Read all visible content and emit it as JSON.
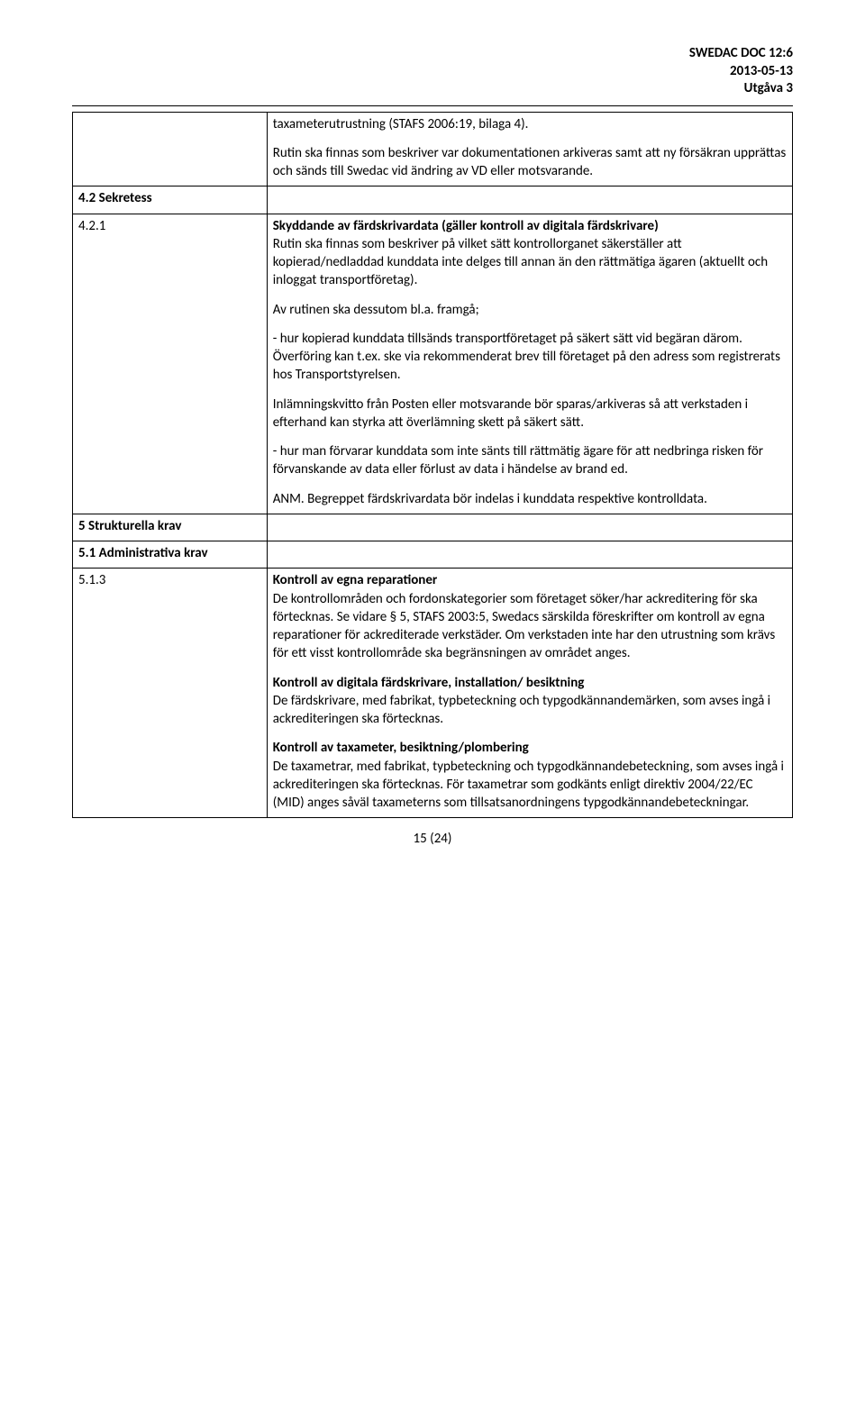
{
  "header": {
    "doc_ref": "SWEDAC DOC 12:6",
    "date": "2013-05-13",
    "edition": "Utgåva 3"
  },
  "rows": {
    "r1": {
      "left": "",
      "p1": "taxameterutrustning (STAFS 2006:19, bilaga 4).",
      "p2": "Rutin ska finnas som beskriver var dokumentationen arkiveras samt att ny försäkran upprättas och sänds till Swedac vid ändring av VD eller motsvarande."
    },
    "r2": {
      "left": "4.2 Sekretess"
    },
    "r3": {
      "left": "4.2.1",
      "heading": "Skyddande av färdskrivardata (gäller kontroll av digitala färdskrivare)",
      "p1": "Rutin ska finnas som beskriver på vilket sätt kontrollorganet säkerställer att kopierad/nedladdad kunddata inte delges till annan än den rättmätiga ägaren (aktuellt och inloggat transportföretag).",
      "p2": "Av rutinen ska dessutom bl.a. framgå;",
      "p3": "- hur kopierad kunddata tillsänds transportföretaget på säkert sätt vid begäran därom. Överföring kan t.ex. ske via rekommenderat brev till företaget på den adress som registrerats hos Transportstyrelsen.",
      "p4": "Inlämningskvitto från Posten eller motsvarande bör sparas/arkiveras så att verkstaden i efterhand kan styrka att överlämning skett på säkert sätt.",
      "p5": "- hur man förvarar kunddata som inte sänts till rättmätig ägare för att nedbringa risken för förvanskande av data eller förlust av data i händelse av brand ed.",
      "p6": "ANM. Begreppet färdskrivardata bör indelas i kunddata respektive kontrolldata."
    },
    "r4": {
      "left": "5 Strukturella krav"
    },
    "r5": {
      "left": "5.1 Administrativa krav"
    },
    "r6": {
      "left": "5.1.3",
      "h1": "Kontroll av egna reparationer",
      "p1": "De kontrollområden och fordonskategorier som företaget söker/har ackreditering för ska förtecknas. Se vidare § 5, STAFS 2003:5, Swedacs särskilda föreskrifter om kontroll av egna reparationer för ackrediterade verkstäder. Om verkstaden inte har den utrustning som krävs för ett visst kontrollområde ska begränsningen av området anges.",
      "h2": "Kontroll av digitala färdskrivare, installation/ besiktning",
      "p2": "De färdskrivare, med fabrikat, typbeteckning och typgodkännandemärken, som avses ingå i ackrediteringen ska förtecknas.",
      "h3": "Kontroll av taxameter, besiktning/plombering",
      "p3": "De taxametrar, med fabrikat, typbeteckning och typgodkännandebeteckning, som avses ingå i ackrediteringen ska förtecknas. För taxametrar som godkänts enligt direktiv 2004/22/EC (MID) anges såväl taxameterns som tillsatsanordningens typgodkännandebeteckningar."
    }
  },
  "footer": {
    "page": "15 (24)"
  }
}
